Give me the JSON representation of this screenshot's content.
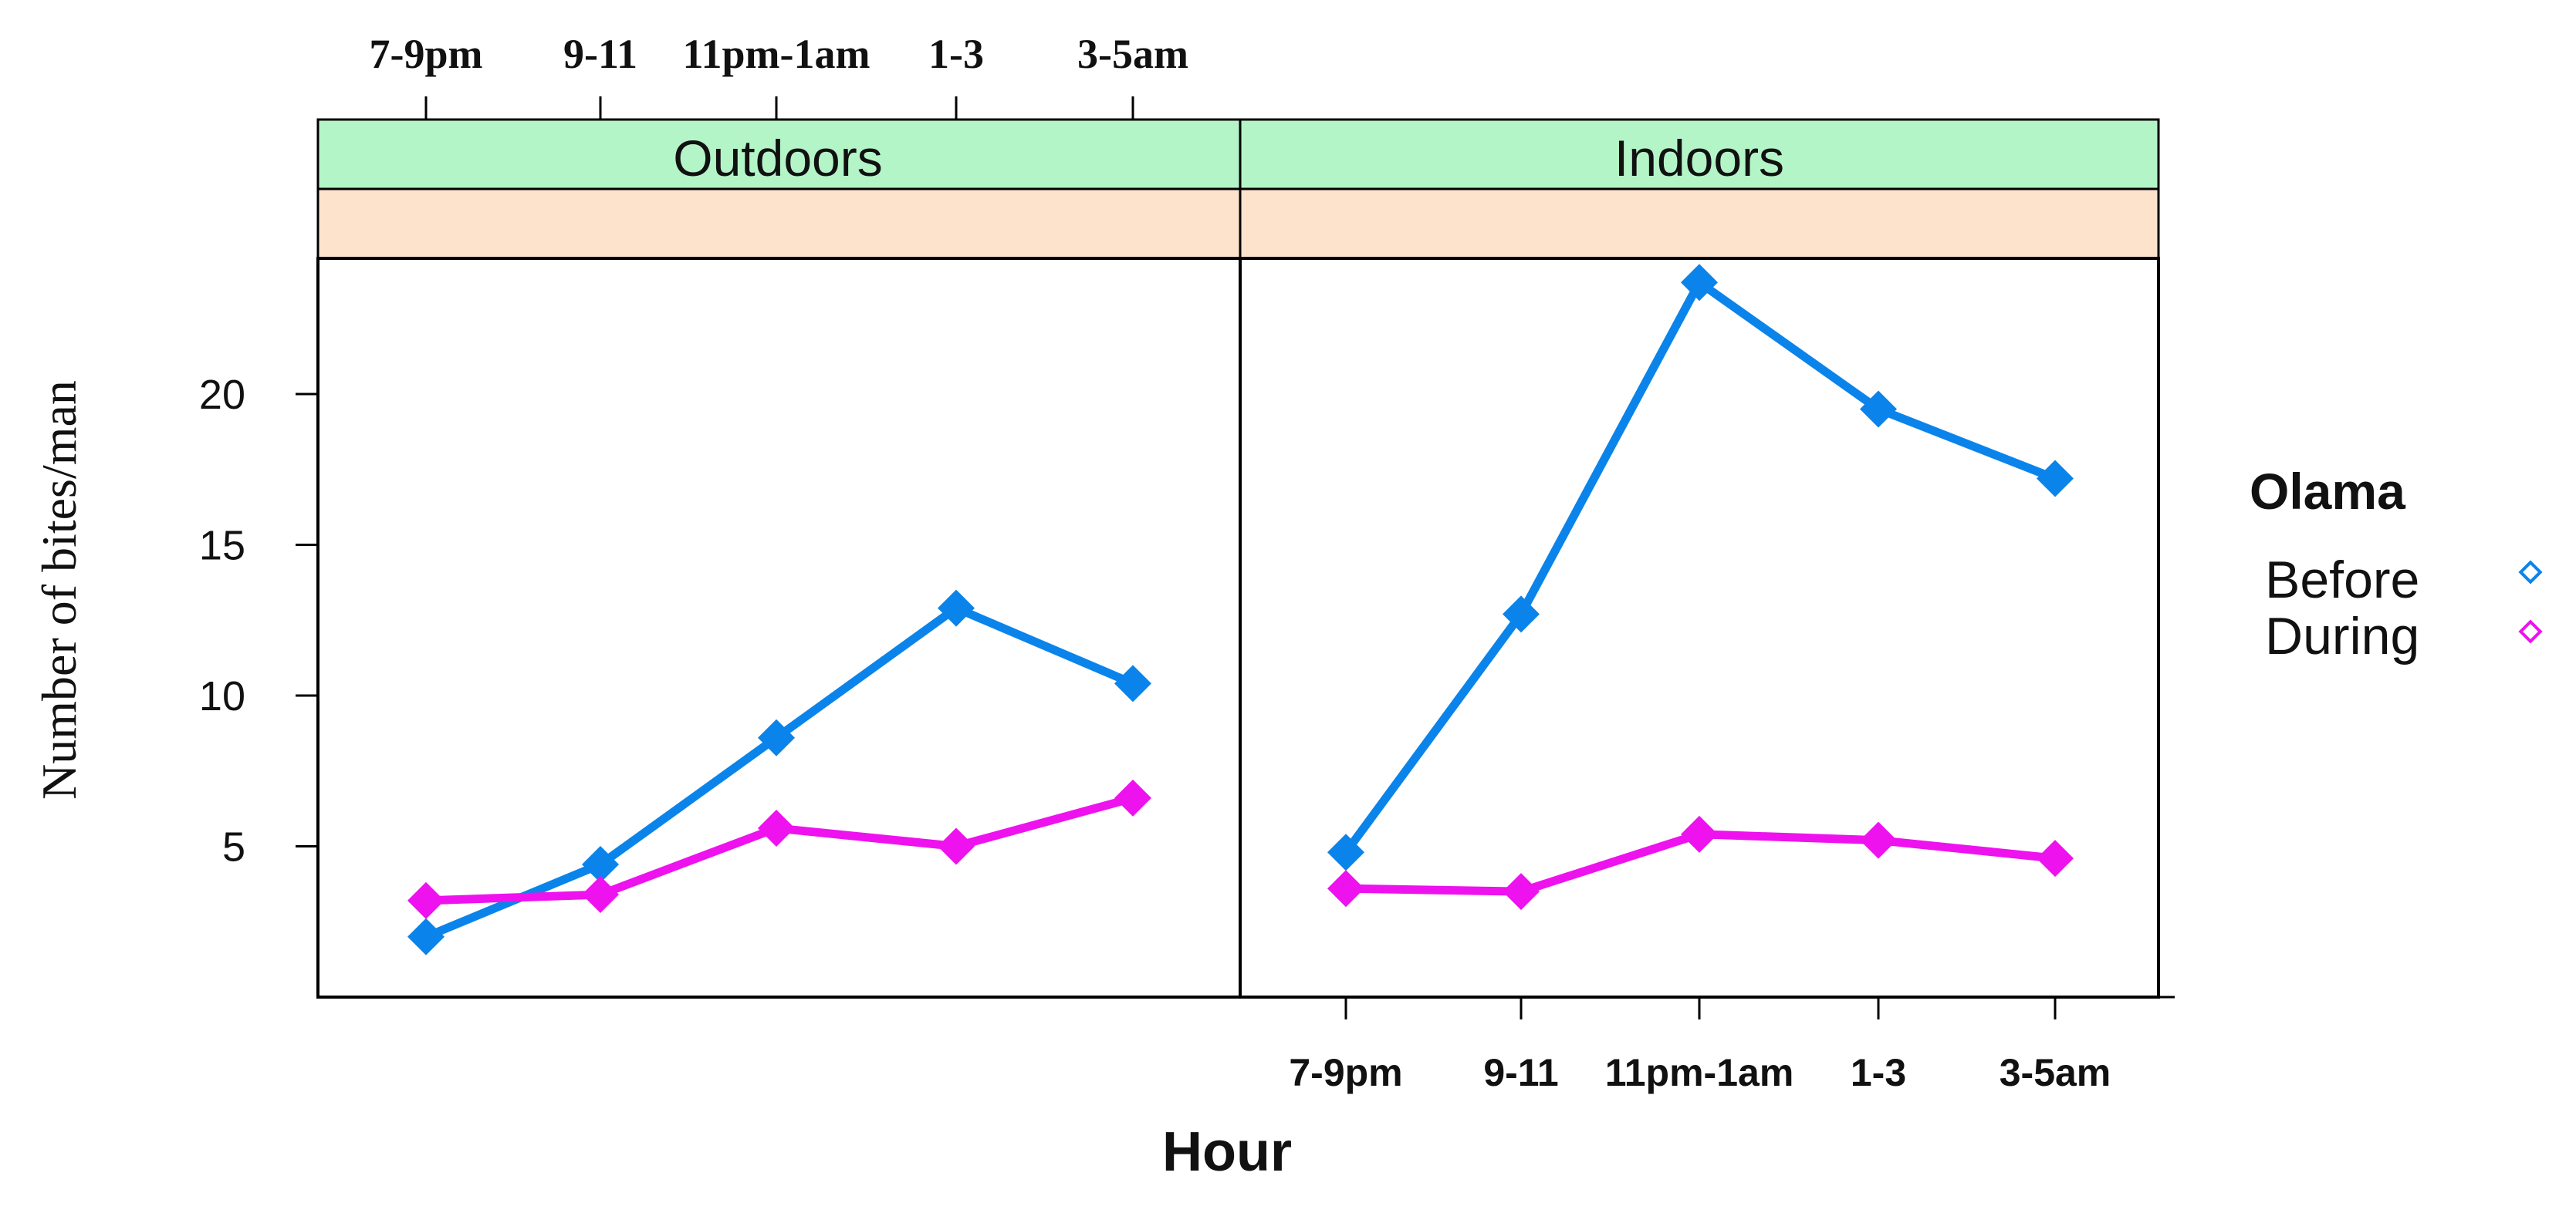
{
  "chart_data": {
    "type": "line",
    "xlabel": "Hour",
    "ylabel": "Number of bites/man",
    "categories": [
      "7-9pm",
      "9-11",
      "11pm-1am",
      "1-3",
      "3-5am"
    ],
    "y_ticks": [
      "5",
      "10",
      "15",
      "20"
    ],
    "ylim": [
      0,
      24.5
    ],
    "legend": {
      "title": "Olama",
      "position": "right",
      "entries": [
        {
          "name": "Before",
          "color": "#0a84ea"
        },
        {
          "name": "During",
          "color": "#ee12ee"
        }
      ]
    },
    "panels": [
      {
        "name": "Outdoors",
        "series": [
          {
            "name": "Before",
            "values": [
              2.0,
              4.4,
              8.6,
              12.9,
              10.4
            ]
          },
          {
            "name": "During",
            "values": [
              3.2,
              3.4,
              5.6,
              5.0,
              6.6
            ]
          }
        ]
      },
      {
        "name": "Indoors",
        "series": [
          {
            "name": "Before",
            "values": [
              4.8,
              12.7,
              23.7,
              19.5,
              17.2
            ]
          },
          {
            "name": "During",
            "values": [
              3.6,
              3.5,
              5.4,
              5.2,
              4.6
            ]
          }
        ]
      }
    ],
    "colors": {
      "strip_top": "#b4f5c8",
      "strip_bottom": "#fde3cc",
      "before": "#0a84ea",
      "during": "#ee12ee"
    }
  }
}
